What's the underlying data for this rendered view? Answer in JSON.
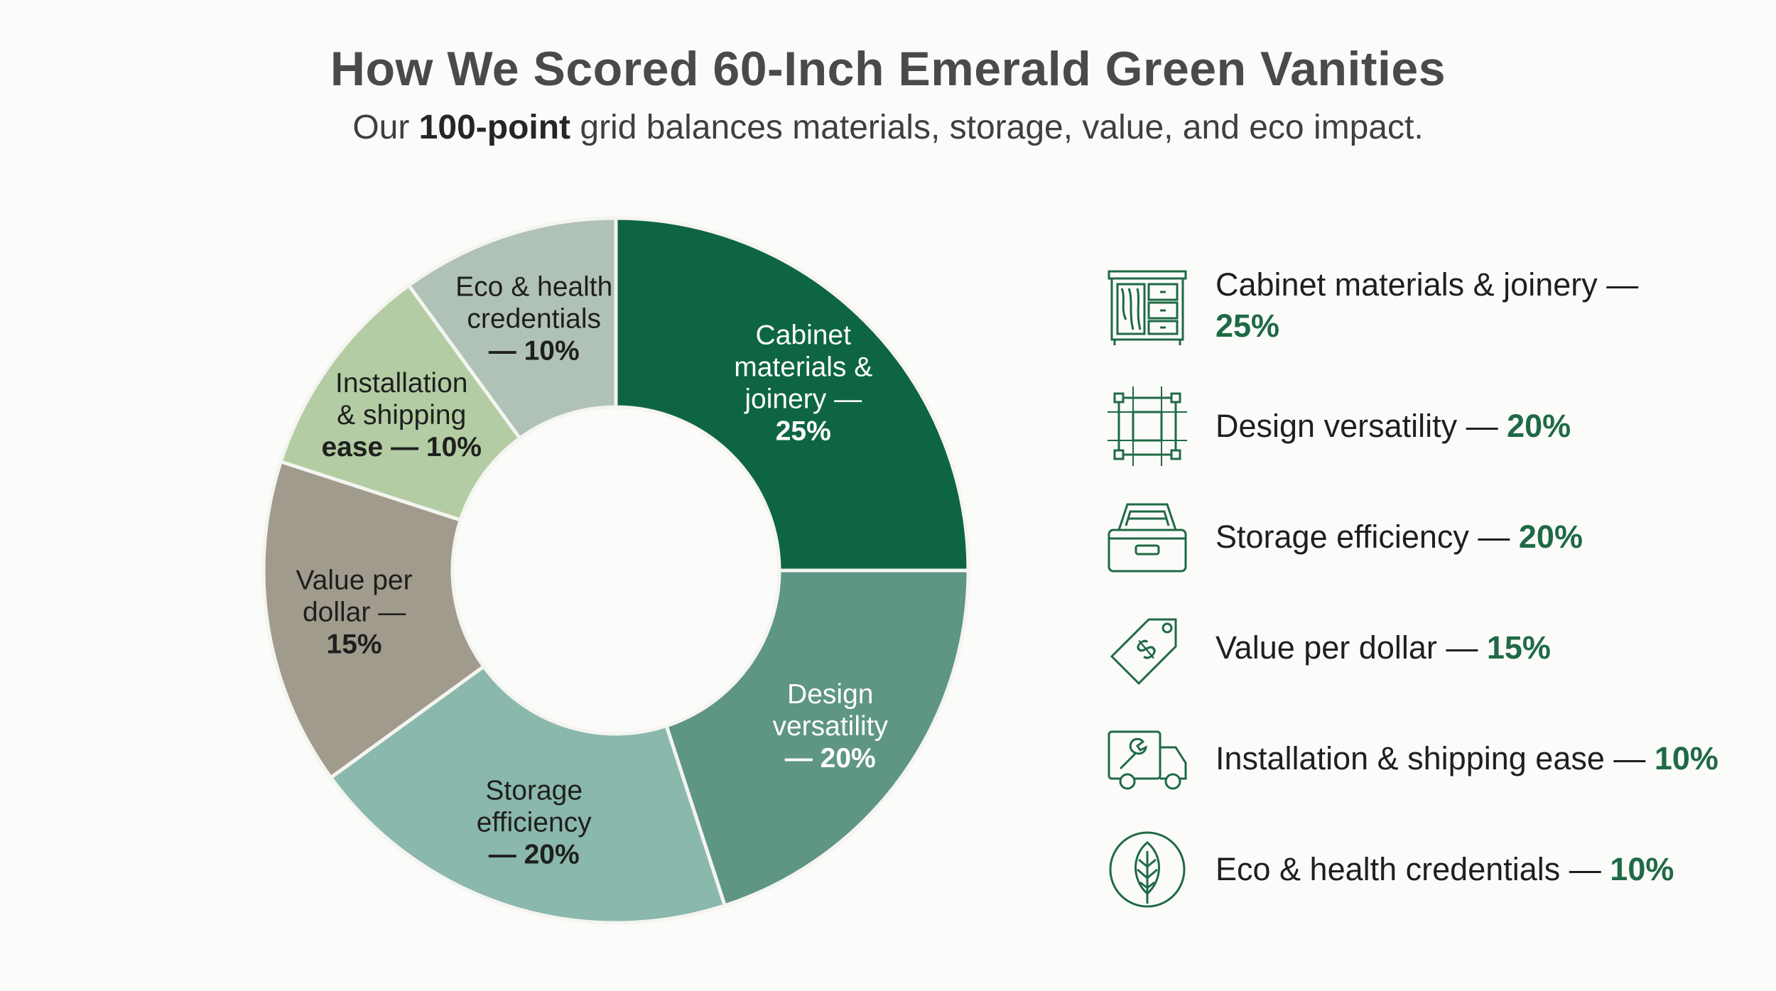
{
  "header": {
    "title": "How We Scored 60-Inch Emerald Green Vanities",
    "subtitle_pre": "Our ",
    "subtitle_bold": "100-point",
    "subtitle_post": " grid balances materials, storage, value, and eco impact."
  },
  "chart_data": {
    "type": "pie",
    "donut": true,
    "start_angle_deg": 0,
    "direction": "clockwise",
    "slices": [
      {
        "name": "Cabinet materials & joinery",
        "value": 25,
        "color": "#0e6543",
        "label_lines": [
          "Cabinet",
          "materials &",
          "joinery —"
        ],
        "pct_label": "25%",
        "label_color": "#ffffff",
        "pct_color": "#ffffff"
      },
      {
        "name": "Design versatility",
        "value": 20,
        "color": "#5f9585",
        "label_lines": [
          "Design",
          "versatility"
        ],
        "pct_label": "— 20%",
        "label_color": "#ffffff",
        "pct_color": "#ffffff"
      },
      {
        "name": "Storage efficiency",
        "value": 20,
        "color": "#8ab8ac",
        "label_lines": [
          "Storage",
          "efficiency"
        ],
        "pct_label": "— 20%",
        "label_color": "#1f1f1f",
        "pct_color": "#1f1f1f"
      },
      {
        "name": "Value per dollar",
        "value": 15,
        "color": "#a19b8d",
        "label_lines": [
          "Value per",
          "dollar —"
        ],
        "pct_label": "15%",
        "label_color": "#1f1f1f",
        "pct_color": "#1f1f1f"
      },
      {
        "name": "Installation & shipping ease",
        "value": 10,
        "color": "#b3cca3",
        "label_lines": [
          "Installation",
          "& shipping"
        ],
        "pct_label": "ease — 10%",
        "label_color": "#1f1f1f",
        "pct_color": "#1f1f1f"
      },
      {
        "name": "Eco & health credentials",
        "value": 10,
        "color": "#b0c2b5",
        "label_lines": [
          "Eco & health",
          "credentials"
        ],
        "pct_label": "— 10%",
        "label_color": "#1f1f1f",
        "pct_color": "#1f1f1f"
      }
    ]
  },
  "legend": {
    "items": [
      {
        "icon": "cabinet-icon",
        "label": "Cabinet materials & joinery —",
        "pct": "25%"
      },
      {
        "icon": "design-grid-icon",
        "label": "Design versatility — ",
        "pct": "20%"
      },
      {
        "icon": "storage-tray-icon",
        "label": "Storage efficiency — ",
        "pct": "20%"
      },
      {
        "icon": "price-tag-icon",
        "label": "Value per dollar — ",
        "pct": "15%"
      },
      {
        "icon": "delivery-truck-icon",
        "label": "Installation & shipping ease — ",
        "pct": "10%"
      },
      {
        "icon": "leaf-icon",
        "label": "Eco & health credentials — ",
        "pct": "10%"
      }
    ],
    "icon_color": "#1f6a45"
  }
}
